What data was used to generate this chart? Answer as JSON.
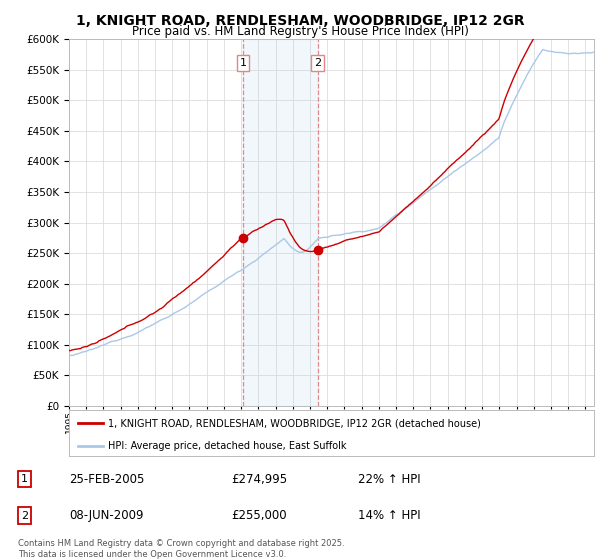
{
  "title": "1, KNIGHT ROAD, RENDLESHAM, WOODBRIDGE, IP12 2GR",
  "subtitle": "Price paid vs. HM Land Registry's House Price Index (HPI)",
  "title_fontsize": 10,
  "subtitle_fontsize": 8.5,
  "background_color": "#ffffff",
  "plot_bg_color": "#ffffff",
  "grid_color": "#dddddd",
  "hpi_color": "#aac8e8",
  "price_color": "#cc0000",
  "ylim": [
    0,
    600000
  ],
  "ytick_step": 50000,
  "sale1": {
    "date_num": 2005.12,
    "price": 274995,
    "label": "1"
  },
  "sale2": {
    "date_num": 2009.44,
    "price": 255000,
    "label": "2"
  },
  "legend_items": [
    {
      "label": "1, KNIGHT ROAD, RENDLESHAM, WOODBRIDGE, IP12 2GR (detached house)",
      "color": "#cc0000"
    },
    {
      "label": "HPI: Average price, detached house, East Suffolk",
      "color": "#aac8e8"
    }
  ],
  "table_rows": [
    {
      "num": "1",
      "date": "25-FEB-2005",
      "price": "£274,995",
      "pct": "22% ↑ HPI"
    },
    {
      "num": "2",
      "date": "08-JUN-2009",
      "price": "£255,000",
      "pct": "14% ↑ HPI"
    }
  ],
  "footer": "Contains HM Land Registry data © Crown copyright and database right 2025.\nThis data is licensed under the Open Government Licence v3.0.",
  "xmin": 1995.0,
  "xmax": 2025.5
}
